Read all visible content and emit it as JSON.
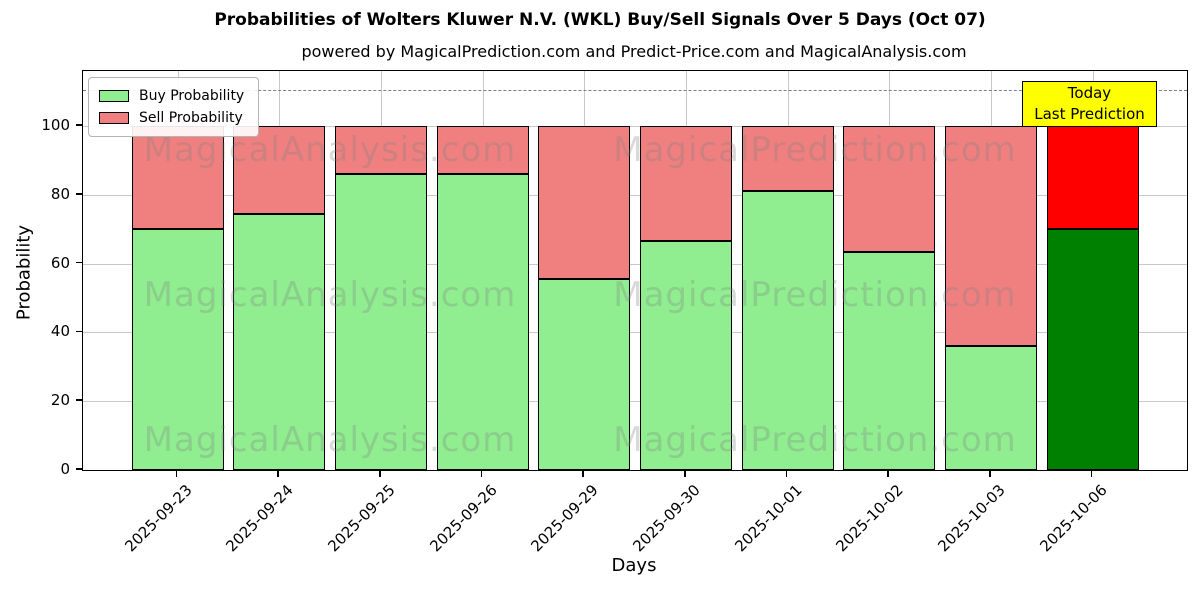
{
  "title": "Probabilities of Wolters Kluwer N.V. (WKL) Buy/Sell Signals Over 5 Days (Oct 07)",
  "subtitle": "powered by MagicalPrediction.com and Predict-Price.com and MagicalAnalysis.com",
  "chart_data": {
    "type": "bar",
    "stacked": true,
    "categories": [
      "2025-09-23",
      "2025-09-24",
      "2025-09-25",
      "2025-09-26",
      "2025-09-29",
      "2025-09-30",
      "2025-10-01",
      "2025-10-02",
      "2025-10-03",
      "2025-10-06"
    ],
    "series": [
      {
        "name": "Buy Probability",
        "values": [
          70,
          74.5,
          86,
          86,
          55.5,
          66.5,
          81,
          63.5,
          36,
          70
        ],
        "color": "#90EE90",
        "today_color": "#008000"
      },
      {
        "name": "Sell Probability",
        "values": [
          30,
          25.5,
          14,
          14,
          44.5,
          33.5,
          19,
          36.5,
          64,
          30
        ],
        "color": "#F08080",
        "today_color": "#FF0000"
      }
    ],
    "today_index": 9,
    "xlabel": "Days",
    "ylabel": "Probability",
    "yticks": [
      0,
      20,
      40,
      60,
      80,
      100
    ],
    "ylim": [
      0,
      116
    ],
    "dashed_line_y": 110.6,
    "grid": true,
    "legend_position": "upper left",
    "colors": {
      "edge": "#000000",
      "grid": "#c9c9c9",
      "dashed": "#7f7f7f"
    }
  },
  "annotation": {
    "line1": "Today",
    "line2": "Last Prediction",
    "bg": "#FFFF00"
  },
  "watermarks": {
    "texts": [
      "MagicalAnalysis.com",
      "MagicalPrediction.com"
    ],
    "x_centers": [
      330,
      815
    ],
    "y_centers": [
      150,
      295,
      440
    ]
  }
}
